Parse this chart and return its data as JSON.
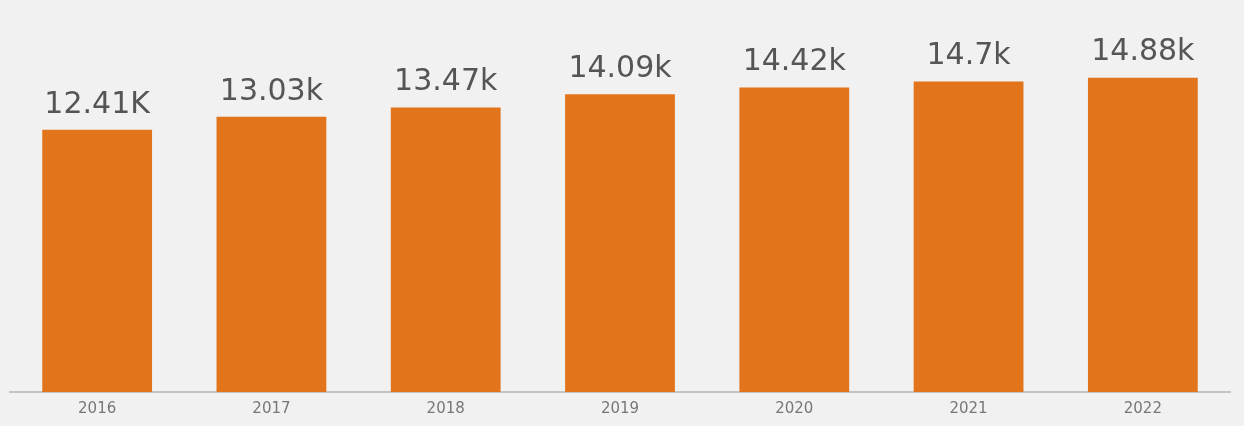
{
  "chart_data": {
    "type": "bar",
    "categories": [
      "2016",
      "2017",
      "2018",
      "2019",
      "2020",
      "2021",
      "2022"
    ],
    "values": [
      12410,
      13030,
      13470,
      14090,
      14420,
      14700,
      14880
    ],
    "value_labels": [
      "12.41K",
      "13.03k",
      "13.47k",
      "14.09k",
      "14.42k",
      "14.7k",
      "14.88k"
    ],
    "color": "#e2751c",
    "tick_labels": "x",
    "grid": false,
    "legend": false
  }
}
